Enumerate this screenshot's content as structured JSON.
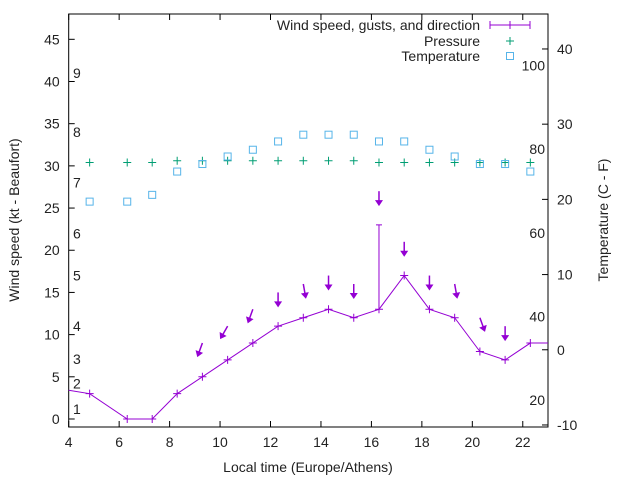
{
  "chart_data": {
    "type": "line",
    "xlabel": "Local time (Europe/Athens)",
    "ylabel": "Wind speed (kt - Beaufort)",
    "y2label": "Temperature (C - F)",
    "xlim": [
      4,
      23
    ],
    "ylim": [
      -0.95,
      48
    ],
    "y2lim": [
      -10.27,
      44.65
    ],
    "xticks": [
      4,
      6,
      8,
      10,
      12,
      14,
      16,
      18,
      20,
      22
    ],
    "yticks": [
      0,
      5,
      10,
      15,
      20,
      25,
      30,
      35,
      40,
      45
    ],
    "y2ticks": [
      -10,
      0,
      10,
      20,
      30,
      40
    ],
    "beaufort_labels": [
      {
        "label": "1",
        "kt": 1.2
      },
      {
        "label": "2",
        "kt": 4.2
      },
      {
        "label": "3",
        "kt": 7.1
      },
      {
        "label": "4",
        "kt": 11
      },
      {
        "label": "5",
        "kt": 17
      },
      {
        "label": "6",
        "kt": 22
      },
      {
        "label": "7",
        "kt": 28
      },
      {
        "label": "8",
        "kt": 34
      },
      {
        "label": "9",
        "kt": 41
      }
    ],
    "fahrenheit_labels": [
      20,
      40,
      60,
      80,
      100
    ],
    "legend": {
      "position": "top-right",
      "entries": [
        "Wind speed, gusts, and direction",
        "Pressure",
        "Temperature"
      ]
    },
    "colors": {
      "wind": "#9400d3",
      "pressure": "#009e73",
      "temperature": "#56b4e9"
    },
    "wind": {
      "x": [
        4,
        4.83,
        6.32,
        7.31,
        8.3,
        9.3,
        10.3,
        11.3,
        12.3,
        13.3,
        14.3,
        15.3,
        16.3,
        17.3,
        18.3,
        19.3,
        20.3,
        21.3,
        22.3,
        23
      ],
      "speed": [
        3.4,
        3,
        0,
        0,
        3,
        5,
        7,
        9,
        11,
        12,
        13,
        12,
        13,
        17,
        13,
        12,
        8,
        7,
        9,
        9
      ],
      "marked": [
        false,
        true,
        true,
        true,
        true,
        true,
        true,
        true,
        true,
        true,
        true,
        true,
        true,
        true,
        true,
        true,
        true,
        true,
        true,
        false
      ]
    },
    "gusts": [
      {
        "x": 16.3,
        "from": 13,
        "to": 23
      }
    ],
    "direction_arrows": [
      {
        "x": 9.3,
        "kt": 9,
        "deg": 20
      },
      {
        "x": 10.3,
        "kt": 11,
        "deg": 30
      },
      {
        "x": 11.3,
        "kt": 13,
        "deg": 20
      },
      {
        "x": 12.3,
        "kt": 15,
        "deg": 0
      },
      {
        "x": 13.3,
        "kt": 16,
        "deg": 350
      },
      {
        "x": 14.3,
        "kt": 17,
        "deg": 0
      },
      {
        "x": 15.3,
        "kt": 16,
        "deg": 0
      },
      {
        "x": 16.3,
        "kt": 27,
        "deg": 0
      },
      {
        "x": 17.3,
        "kt": 21,
        "deg": 0
      },
      {
        "x": 18.3,
        "kt": 17,
        "deg": 0
      },
      {
        "x": 19.3,
        "kt": 16,
        "deg": 350
      },
      {
        "x": 20.3,
        "kt": 12,
        "deg": 340
      },
      {
        "x": 21.3,
        "kt": 11,
        "deg": 0
      }
    ],
    "pressure": {
      "x": [
        4.83,
        6.32,
        7.31,
        8.3,
        9.3,
        10.3,
        11.3,
        12.3,
        13.3,
        14.3,
        15.3,
        16.3,
        17.3,
        18.3,
        19.3,
        20.3,
        21.3,
        22.3
      ],
      "values": [
        30.4,
        30.4,
        30.4,
        30.6,
        30.6,
        30.6,
        30.6,
        30.6,
        30.6,
        30.6,
        30.6,
        30.4,
        30.4,
        30.4,
        30.4,
        30.4,
        30.4,
        30.4
      ]
    },
    "temperature": {
      "x": [
        4.83,
        6.32,
        7.31,
        8.3,
        9.3,
        10.3,
        11.3,
        12.3,
        13.3,
        14.3,
        15.3,
        16.3,
        17.3,
        18.3,
        19.3,
        20.3,
        21.3,
        22.3
      ],
      "values": [
        19.7,
        19.7,
        20.6,
        23.7,
        24.7,
        25.7,
        26.6,
        27.7,
        28.6,
        28.6,
        28.6,
        27.7,
        27.7,
        26.6,
        25.7,
        24.7,
        24.7,
        23.7
      ]
    }
  }
}
